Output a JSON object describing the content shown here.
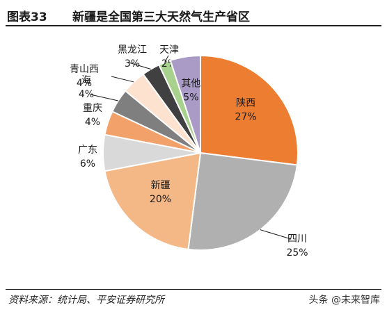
{
  "header": {
    "figure_number": "图表33",
    "title": "新疆是全国第三大天然气生产省区"
  },
  "chart_data": {
    "type": "pie",
    "slices": [
      {
        "name": "陕西",
        "value": 27,
        "label": "27%",
        "color": "#ED7D31"
      },
      {
        "name": "四川",
        "value": 25,
        "label": "25%",
        "color": "#B0B0B0"
      },
      {
        "name": "新疆",
        "value": 20,
        "label": "20%",
        "color": "#F4B887"
      },
      {
        "name": "广东",
        "value": 6,
        "label": "6%",
        "color": "#D9D9D9"
      },
      {
        "name": "重庆",
        "value": 4,
        "label": "4%",
        "color": "#F2A16A"
      },
      {
        "name": "海",
        "value": 4,
        "label": "4%",
        "color": "#7F7F7F"
      },
      {
        "name": "青山西",
        "value": 4,
        "label": "4%",
        "color": "#FCE2CF"
      },
      {
        "name": "黑龙江",
        "value": 3,
        "label": "3%",
        "color": "#404040"
      },
      {
        "name": "天津",
        "value": 2,
        "label": "2%",
        "color": "#A9D18E"
      },
      {
        "name": "其他",
        "value": 5,
        "label": "5%",
        "color": "#A99BC6"
      }
    ]
  },
  "footer": {
    "source": "资料来源：统计局、平安证券研究所",
    "watermark": "头条 @未来智库"
  }
}
